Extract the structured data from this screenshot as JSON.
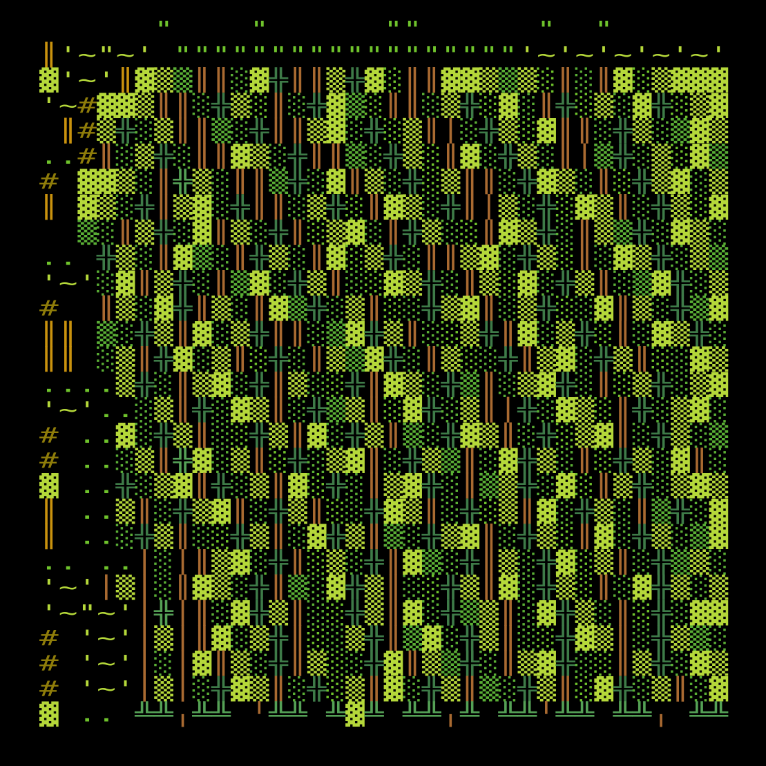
{
  "screen": {
    "background": "#000000",
    "description": "terminal textmode ascii art grid on black"
  },
  "art": {
    "palette": [
      "#6fc32c",
      "#b5d83a",
      "#5aaf35",
      "#3e7b48",
      "#a96a31",
      "#c9920e",
      "#8f7d0a",
      "#55a156"
    ],
    "charmap": {
      "_": {
        "ch": " ",
        "c": 0
      },
      "q": {
        "ch": "'",
        "c": 1
      },
      "t": {
        "ch": "~",
        "c": 1
      },
      "u": {
        "ch": "\"",
        "c": 0
      },
      "w": {
        "ch": "\"",
        "c": 1
      },
      "o": {
        "ch": ".",
        "c": 0
      },
      "h": {
        "ch": "#",
        "c": 6
      },
      "O": {
        "ch": "║",
        "c": 5
      },
      "P": {
        "ch": "║",
        "c": 4
      },
      "l": {
        "ch": "│",
        "c": 4
      },
      "i": {
        "ch": "╵",
        "c": 4
      },
      "j": {
        "ch": "╷",
        "c": 4
      },
      "d": {
        "ch": "░",
        "c": 2
      },
      "D": {
        "ch": "░",
        "c": 0
      },
      "m": {
        "ch": "▒",
        "c": 1
      },
      "M": {
        "ch": "▒",
        "c": 2
      },
      "b": {
        "ch": "▓",
        "c": 1
      },
      "X": {
        "ch": "╬",
        "c": 3
      },
      "Y": {
        "ch": "╬",
        "c": 7
      },
      "U": {
        "ch": "╩",
        "c": 7
      }
    },
    "rows": [
      "______u____u______uu______u__u______",
      "Oqtwtq_uuuuuuuuuuuuuuuuuuqtqtqtqtqtq",
      "bqtqObmMPPdbXPPmXbDPPbbmMmDPdPbDmbbb",
      "qthbbmPPdXmDPdXbMDPPdmXDbdPXDmdbXDmb",
      "_OhmXdmPPMdXPPmbdXDmPldXmDbPPdXmdMbm",
      "oohPdmXdPPbmdXPPMdXmDPbdXmdPlMXdmDbM",
      "h_bbmdPYmdPPMXdbPmdXDmPPdXbmdPDXmbdm",
      "O_bmdXPmbdXPPdmXDPbmdXPlmdXDbmPdXmDb",
      "__MdPmXdbPmdXPDmbdPXmdDPbmXdPmMXdbmd",
      "oo_XmdPbMdPXmdPbDmXdPPmbdXmDPdbmXdmM",
      "qtqdbPmXdPMbdXmPdDbmXdPmDbdXmPdMbXdm",
      "h__PmdbXPmdPbMXdmPDdXmbPdmXDdbPmdXMb",
      "OO_MdXmPbdmXPPdMbXmPdDmXPbdmXDPdbmXd",
      "OO_dmPXbdmPDXdPmMbXdPmDdXPmbdXmPDdbm",
      "oooomXdPmbdXPmdDXPbmdXMPdmbXdPDmXdmb",
      "qtqoodmPXdbmPdXMmPDbXdmPlXdbmDPXdmbd",
      "h_oobdXmPdDXmPbdXmPMdXbmPdXDmbPdXmdM",
      "h_oodmPYbdmPDXdmbPdXmMPdbXmdPDXmdbPd",
      "b_ooXdmbPXdmPbDXdPmbXdPMmXdbDPmXdmbm",
      "O_oomPdXmbPdXmPDdXbmPdXDmPbdXmdPMXdb",
      "O_oodXmPdDXmPdbXmPMdXmbPdXmDPbdXmdMb",
      "oo_ooldlPmbdXPDmdXPbMdXPmdXbDmPdXMmd",
      "qtqlmldPbmdXPMdbXmPdDXmPbdXmDPdbXmdm",
      "qtwtqlYlPdbXmPdDXmPbdXMmPdbXmdPDXdbb",
      "h_qtqlmlPbdmXPDdmXPMbdXmPdDXbmPdXmMd",
      "h_qtqldlbPmdXPmDdXbPmMXdPmbXdDPmXdbm",
      "h_qtqlmldXbmPdXDmPbdXmPMdXmPDbXdmPdb",
      "b_oo_UUjUU_iUU_UbU_UUjU_UUiUU_UUj_UU"
    ]
  }
}
